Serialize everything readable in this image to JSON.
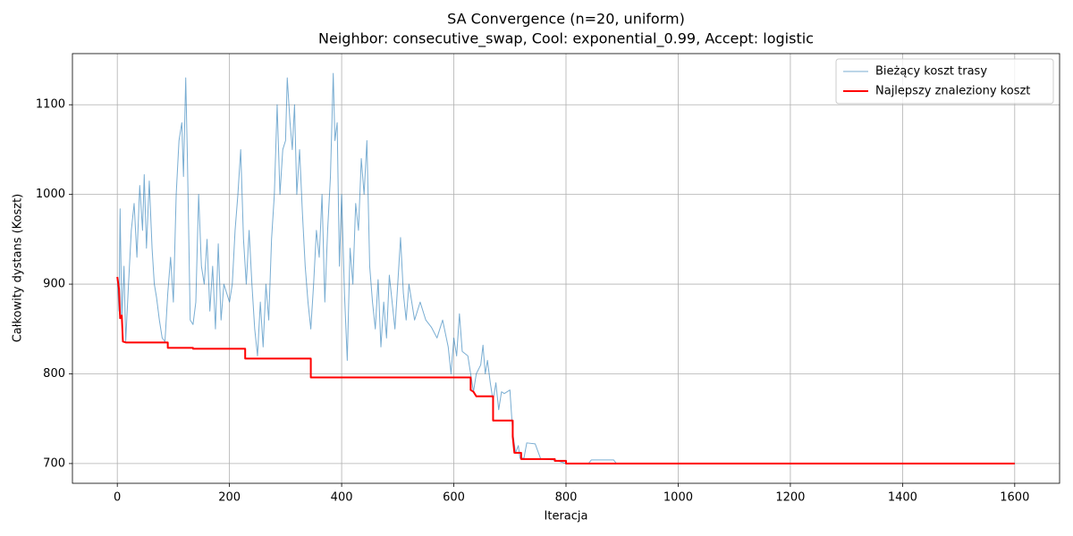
{
  "chart_data": {
    "type": "line",
    "title": "SA Convergence (n=20, uniform)",
    "subtitle": "Neighbor: consecutive_swap, Cool: exponential_0.99, Accept: logistic",
    "xlabel": "Iteracja",
    "ylabel": "Całkowity dystans (Koszt)",
    "xlim": [
      -80,
      1680
    ],
    "ylim": [
      678,
      1157
    ],
    "xticks": [
      0,
      200,
      400,
      600,
      800,
      1000,
      1200,
      1400,
      1600
    ],
    "yticks": [
      700,
      800,
      900,
      1000,
      1100
    ],
    "grid": true,
    "legend": "upper right",
    "series": [
      {
        "name": "Bieżący koszt trasy",
        "color": "#1f77b4",
        "alpha": 0.6,
        "width": 1,
        "x": [
          0,
          3,
          5,
          8,
          12,
          15,
          20,
          25,
          30,
          35,
          40,
          45,
          48,
          52,
          57,
          62,
          66,
          70,
          75,
          80,
          85,
          90,
          95,
          100,
          105,
          110,
          115,
          118,
          122,
          125,
          130,
          135,
          140,
          145,
          150,
          155,
          160,
          165,
          170,
          175,
          180,
          185,
          190,
          200,
          205,
          210,
          215,
          220,
          225,
          230,
          235,
          240,
          245,
          250,
          255,
          260,
          265,
          270,
          275,
          280,
          285,
          290,
          295,
          300,
          303,
          308,
          312,
          316,
          320,
          325,
          330,
          335,
          340,
          345,
          350,
          355,
          360,
          365,
          370,
          375,
          380,
          385,
          388,
          392,
          396,
          400,
          405,
          410,
          415,
          420,
          425,
          430,
          435,
          440,
          445,
          450,
          455,
          460,
          465,
          470,
          475,
          480,
          485,
          490,
          495,
          500,
          505,
          510,
          515,
          520,
          525,
          530,
          540,
          550,
          560,
          570,
          580,
          590,
          595,
          600,
          605,
          610,
          615,
          625,
          630,
          635,
          640,
          648,
          652,
          656,
          660,
          665,
          670,
          675,
          680,
          685,
          690,
          700,
          705,
          710,
          715,
          718,
          725,
          730,
          745,
          755,
          780,
          800,
          840,
          845,
          885,
          890,
          1600
        ],
        "values": [
          908,
          870,
          984,
          860,
          920,
          836,
          900,
          960,
          990,
          930,
          1010,
          960,
          1022,
          940,
          1015,
          940,
          900,
          885,
          860,
          840,
          836,
          890,
          930,
          880,
          1000,
          1060,
          1080,
          1020,
          1130,
          1040,
          860,
          855,
          880,
          1000,
          920,
          900,
          950,
          870,
          920,
          850,
          945,
          860,
          900,
          880,
          900,
          960,
          1000,
          1050,
          950,
          900,
          960,
          900,
          850,
          820,
          880,
          830,
          900,
          860,
          950,
          1000,
          1100,
          1000,
          1050,
          1060,
          1130,
          1080,
          1050,
          1100,
          1000,
          1050,
          980,
          920,
          880,
          850,
          900,
          960,
          930,
          1000,
          880,
          960,
          1020,
          1135,
          1060,
          1080,
          920,
          1000,
          890,
          815,
          940,
          900,
          990,
          960,
          1040,
          1000,
          1060,
          920,
          880,
          850,
          905,
          830,
          880,
          840,
          910,
          880,
          850,
          900,
          952,
          890,
          860,
          900,
          880,
          860,
          880,
          860,
          852,
          840,
          860,
          830,
          800,
          840,
          820,
          867,
          825,
          820,
          800,
          780,
          800,
          810,
          832,
          800,
          815,
          790,
          770,
          790,
          760,
          780,
          778,
          782,
          735,
          712,
          720,
          706,
          706,
          723,
          722,
          705,
          704,
          700,
          700,
          704,
          704,
          700,
          700
        ]
      },
      {
        "name": "Najlepszy znaleziony koszt",
        "color": "#ff0000",
        "alpha": 1,
        "width": 2,
        "x": [
          0,
          3,
          5,
          8,
          10,
          15,
          90,
          90,
          135,
          135,
          228,
          228,
          345,
          345,
          630,
          630,
          635,
          640,
          670,
          670,
          705,
          705,
          708,
          720,
          720,
          780,
          780,
          800,
          800,
          1600
        ],
        "values": [
          908,
          895,
          862,
          865,
          836,
          835,
          835,
          829,
          829,
          828,
          828,
          817,
          817,
          796,
          796,
          782,
          780,
          775,
          775,
          748,
          748,
          730,
          712,
          712,
          705,
          705,
          703,
          703,
          700,
          700
        ]
      }
    ]
  }
}
